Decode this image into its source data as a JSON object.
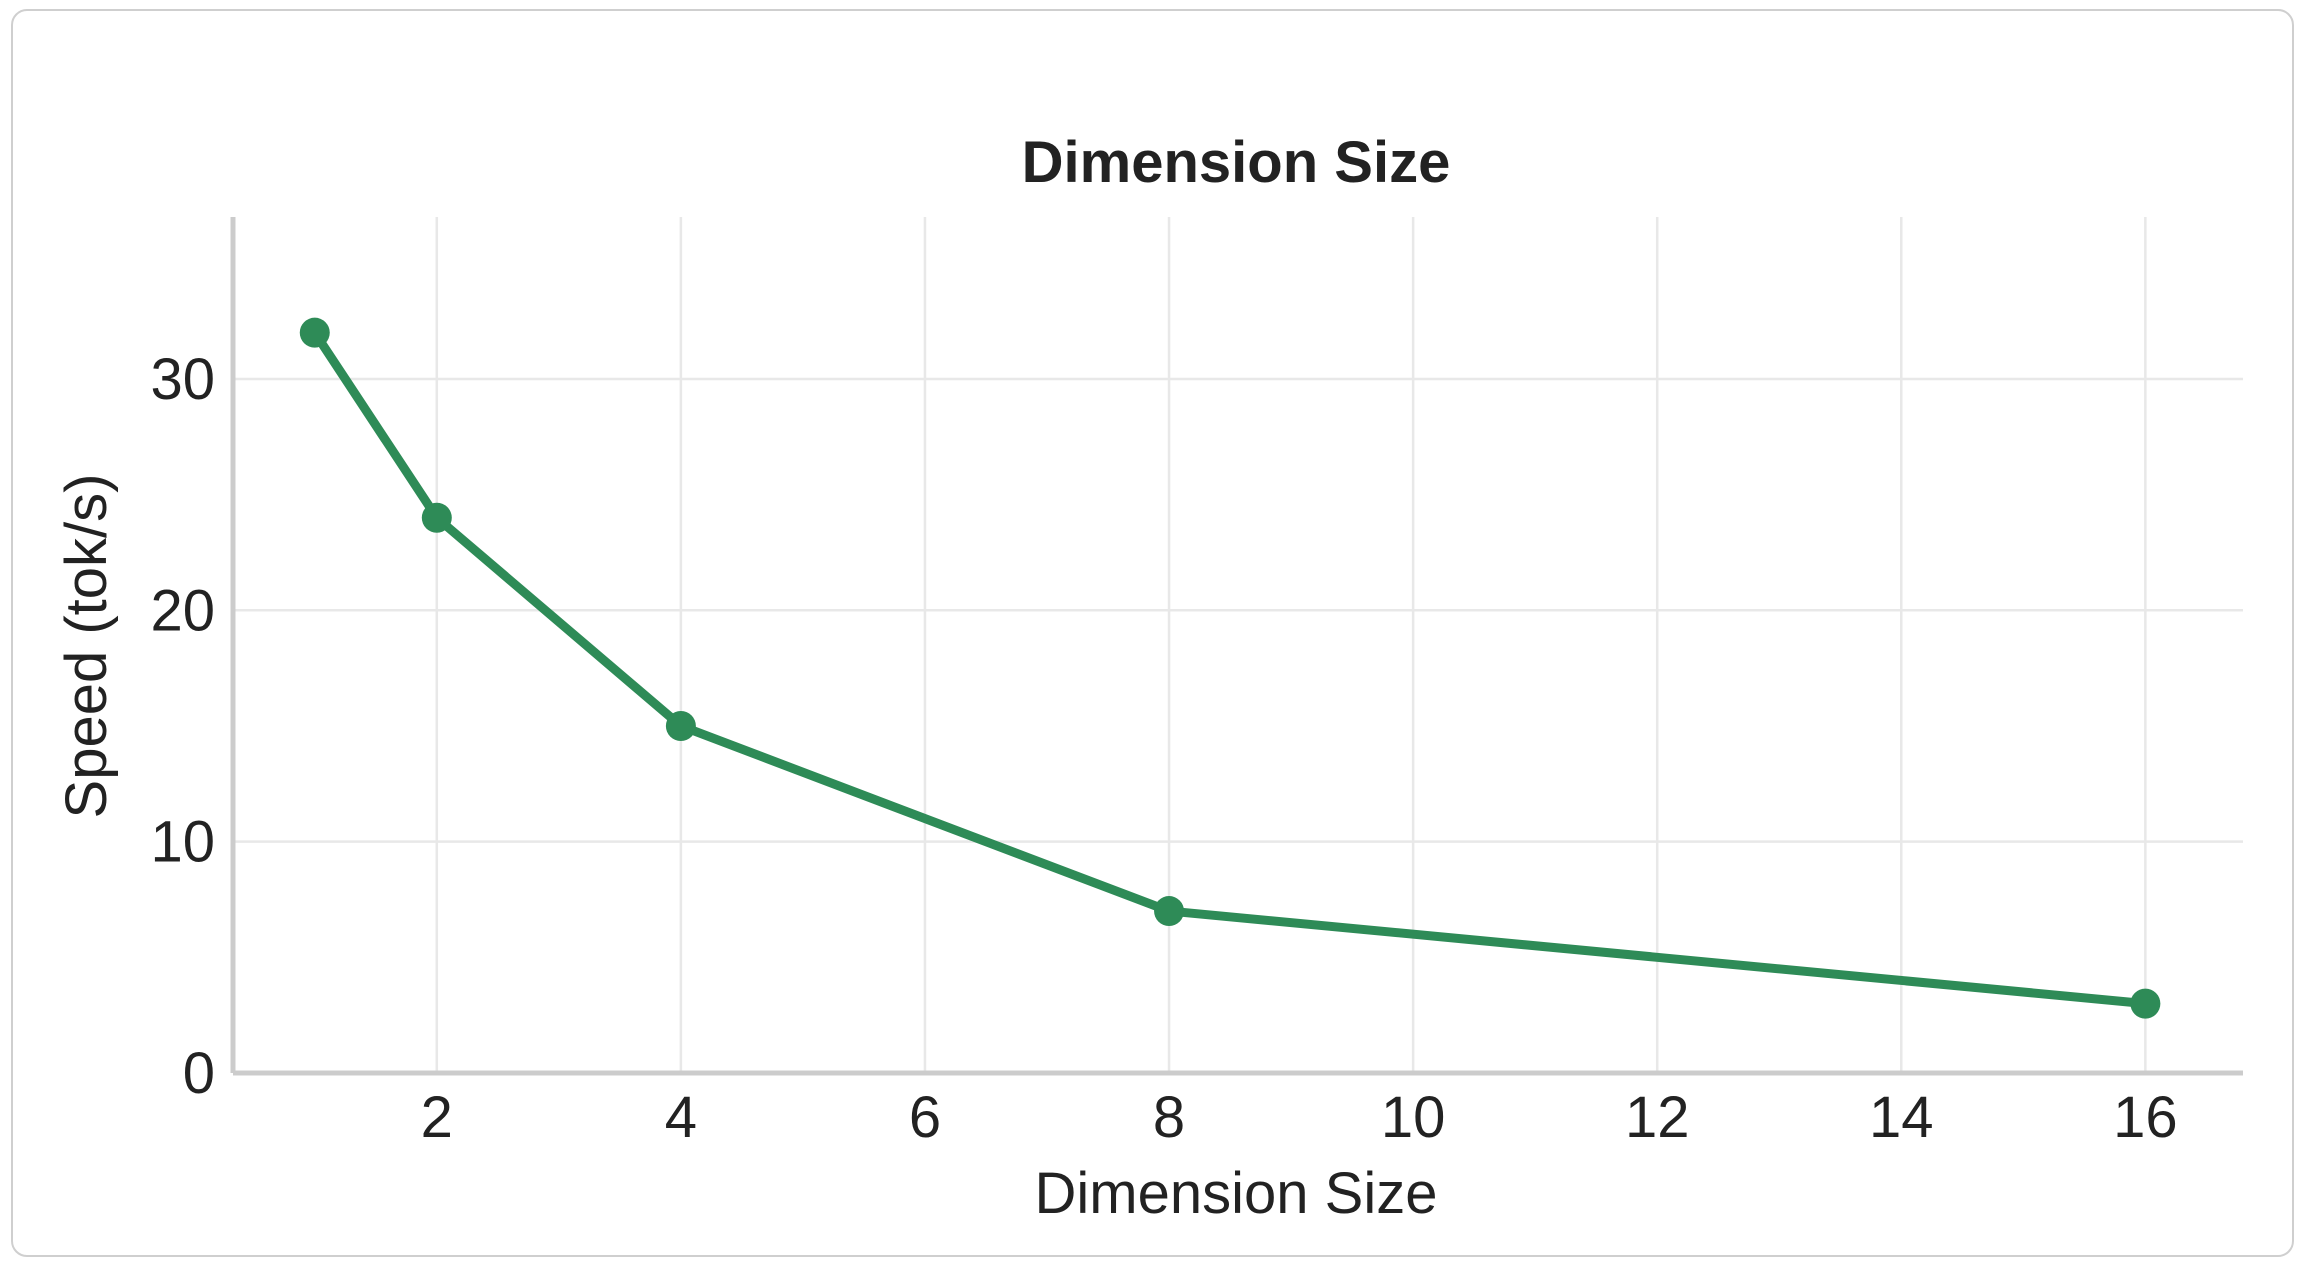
{
  "chart_data": {
    "type": "line",
    "title": "Dimension Size",
    "xlabel": "Dimension Size",
    "ylabel": "Speed (tok/s)",
    "x_ticks": [
      2,
      4,
      6,
      8,
      10,
      12,
      14,
      16
    ],
    "y_ticks": [
      0,
      10,
      20,
      30
    ],
    "xlim": [
      0.33,
      16.8
    ],
    "ylim": [
      0,
      37
    ],
    "grid": true,
    "series": [
      {
        "x": [
          1,
          2,
          4,
          8,
          16
        ],
        "values": [
          32,
          24,
          15,
          7,
          3
        ],
        "color": "#2e8b57"
      }
    ]
  }
}
